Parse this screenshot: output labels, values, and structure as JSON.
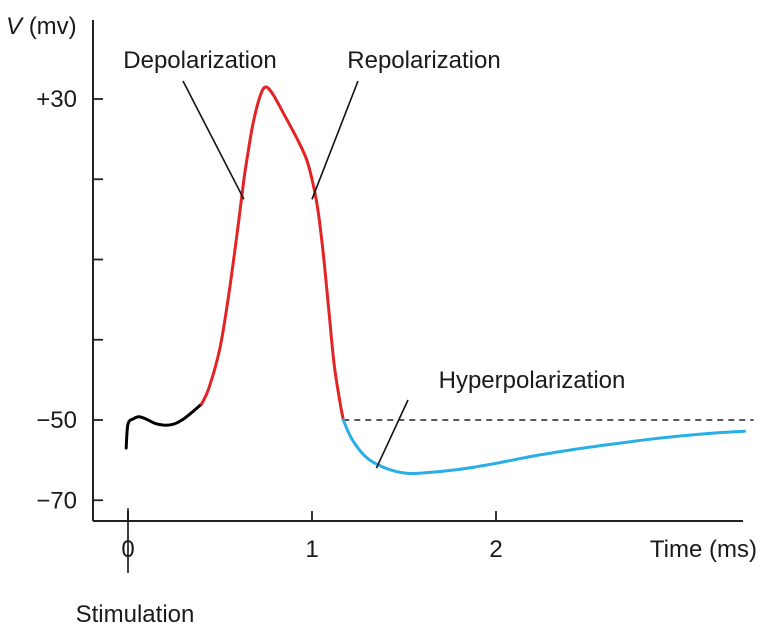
{
  "chart_data": {
    "type": "line",
    "title": "",
    "ylabel": {
      "symbol": "V",
      "unit": "(mv)"
    },
    "xlabel": "Time (ms)",
    "xlim": [
      0,
      3.4
    ],
    "ylim": [
      -72,
      40
    ],
    "x_ticks": [
      {
        "value": 0,
        "label": "0"
      },
      {
        "value": 1,
        "label": "1"
      },
      {
        "value": 2,
        "label": "2"
      }
    ],
    "y_ticks": [
      {
        "value": 30,
        "label": "+30"
      },
      {
        "value": 10,
        "label": ""
      },
      {
        "value": -10,
        "label": ""
      },
      {
        "value": -30,
        "label": ""
      },
      {
        "value": -50,
        "label": "−50"
      },
      {
        "value": -70,
        "label": "−70"
      }
    ],
    "reference_line": {
      "value": -50,
      "style": "dashed"
    },
    "series": [
      {
        "phase": "pre",
        "color": "#000000",
        "points": [
          [
            -0.01,
            -57
          ],
          [
            0.0,
            -51
          ],
          [
            0.03,
            -49.7
          ],
          [
            0.06,
            -49.2
          ],
          [
            0.1,
            -49.8
          ],
          [
            0.15,
            -50.9
          ],
          [
            0.2,
            -51.3
          ],
          [
            0.25,
            -51.0
          ],
          [
            0.3,
            -49.8
          ],
          [
            0.35,
            -48.0
          ],
          [
            0.4,
            -46.0
          ]
        ]
      },
      {
        "phase": "depolarization",
        "color": "#e32424",
        "points": [
          [
            0.4,
            -46.0
          ],
          [
            0.44,
            -42.0
          ],
          [
            0.5,
            -32.0
          ],
          [
            0.55,
            -18.0
          ],
          [
            0.6,
            -1.0
          ],
          [
            0.63,
            10.0
          ],
          [
            0.65,
            16.0
          ],
          [
            0.68,
            24.0
          ],
          [
            0.72,
            31.0
          ],
          [
            0.75,
            33.0
          ],
          [
            0.79,
            31.0
          ],
          [
            0.85,
            26.0
          ],
          [
            0.92,
            20.0
          ],
          [
            0.97,
            15.0
          ],
          [
            1.0,
            10.0
          ],
          [
            1.03,
            3.0
          ],
          [
            1.06,
            -8.0
          ],
          [
            1.09,
            -22.0
          ],
          [
            1.12,
            -36.0
          ],
          [
            1.15,
            -45.0
          ],
          [
            1.17,
            -50.0
          ]
        ]
      },
      {
        "phase": "hyperpolarization",
        "color": "#2aaee6",
        "points": [
          [
            1.17,
            -50.0
          ],
          [
            1.22,
            -55.0
          ],
          [
            1.3,
            -59.5
          ],
          [
            1.4,
            -62.0
          ],
          [
            1.5,
            -63.2
          ],
          [
            1.6,
            -63.2
          ],
          [
            1.8,
            -62.3
          ],
          [
            2.0,
            -60.8
          ],
          [
            2.2,
            -59.0
          ],
          [
            2.4,
            -57.5
          ],
          [
            2.6,
            -56.2
          ],
          [
            2.8,
            -55.0
          ],
          [
            3.0,
            -54.0
          ],
          [
            3.2,
            -53.2
          ],
          [
            3.35,
            -52.8
          ]
        ]
      }
    ],
    "annotations": [
      {
        "text": "Depolarization",
        "target": [
          0.63,
          5.0
        ]
      },
      {
        "text": "Repolarization",
        "target": [
          1.0,
          5.0
        ]
      },
      {
        "text": "Hyperpolarization",
        "target": [
          1.35,
          -62.0
        ]
      },
      {
        "text": "Stimulation",
        "target": [
          0.0,
          -72.0
        ]
      }
    ]
  }
}
